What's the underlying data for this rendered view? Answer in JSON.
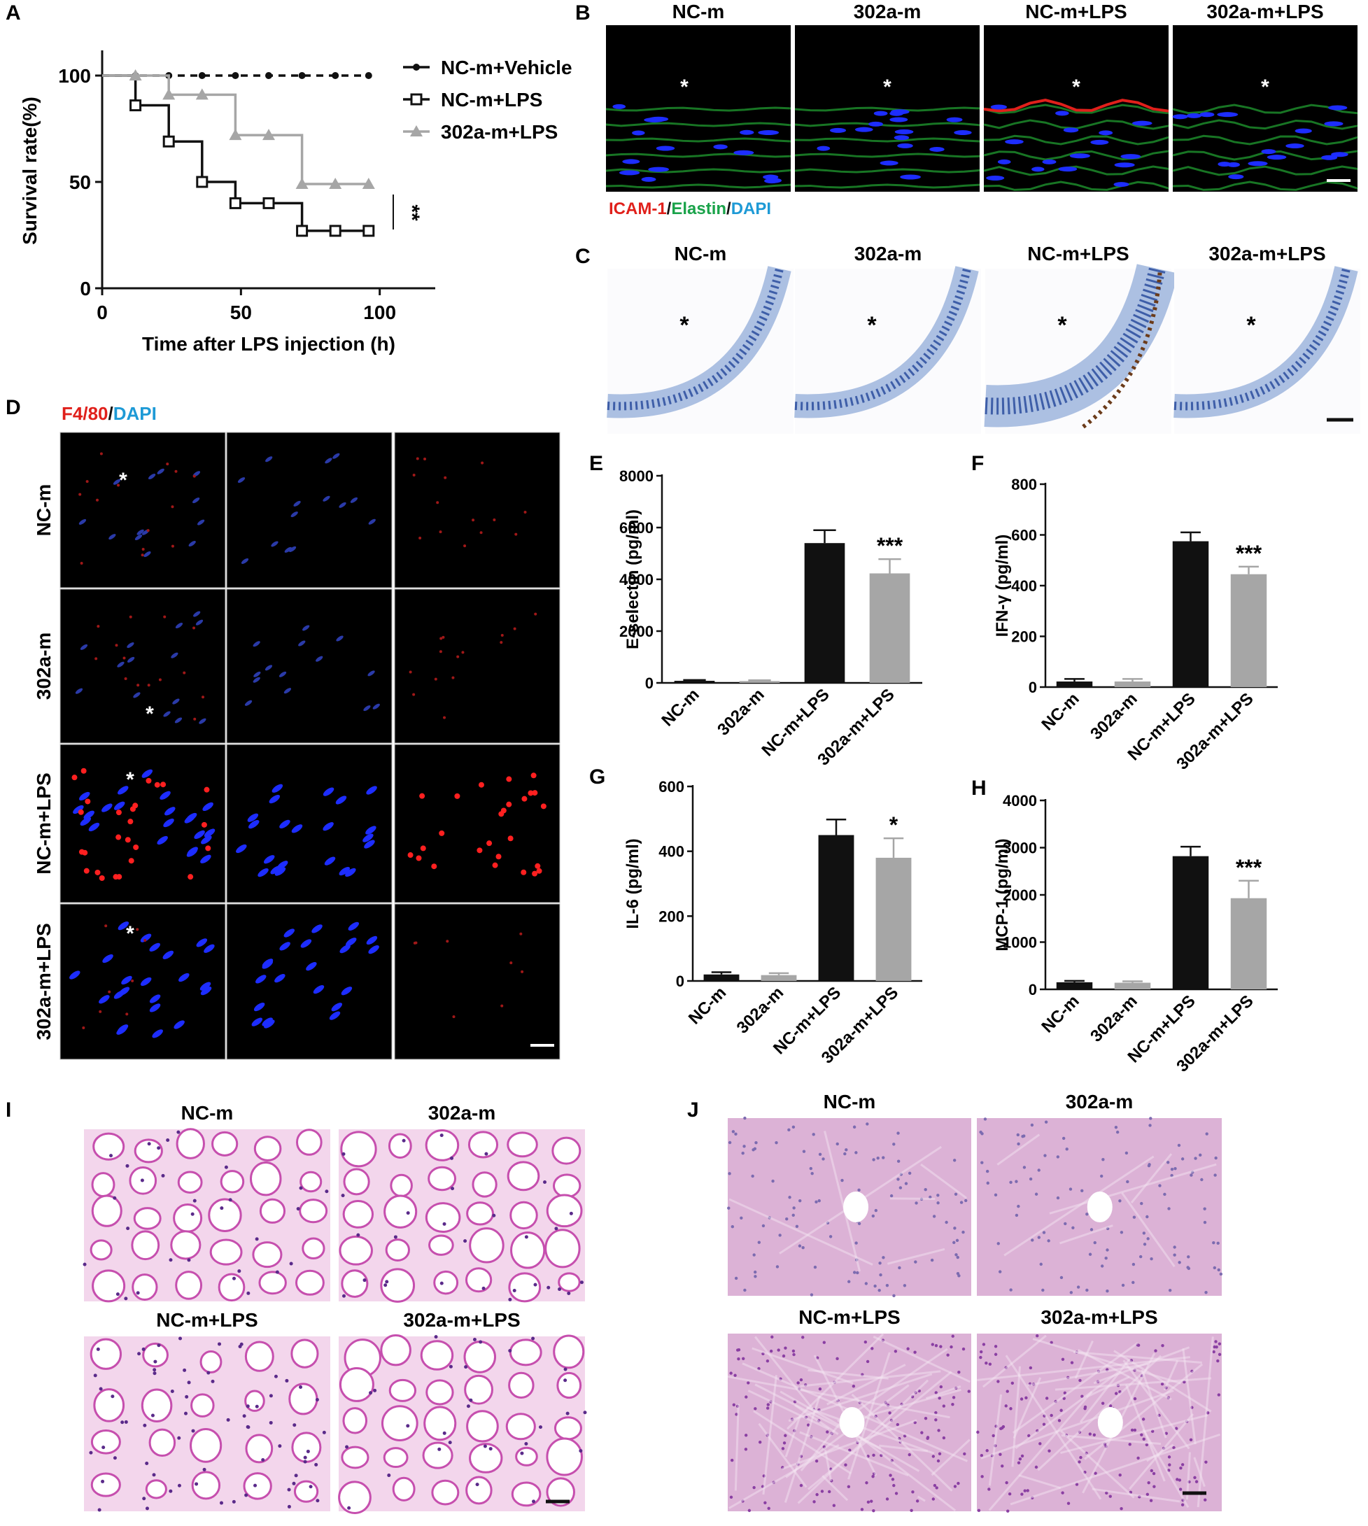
{
  "panels": {
    "A": {
      "letter": "A",
      "chart_data": {
        "type": "line",
        "step": true,
        "ylabel": "Survival rate(%)",
        "xlabel": "Time after LPS injection (h)",
        "xlim": [
          0,
          120
        ],
        "ylim": [
          0,
          100
        ],
        "xticks": [
          "0",
          "50",
          "100"
        ],
        "yticks": [
          "0",
          "50",
          "100"
        ],
        "series": [
          {
            "name": "NC-m+Vehicle",
            "marker": "circle",
            "dashed": true,
            "color": "#111111",
            "x": [
              0,
              12,
              24,
              36,
              48,
              60,
              72,
              84,
              96
            ],
            "y": [
              100,
              100,
              100,
              100,
              100,
              100,
              100,
              100,
              100
            ]
          },
          {
            "name": "NC-m+LPS",
            "marker": "square",
            "dashed": false,
            "color": "#111111",
            "x": [
              0,
              12,
              24,
              36,
              48,
              60,
              72,
              84,
              96
            ],
            "y": [
              100,
              86,
              69,
              50,
              40,
              40,
              27,
              27,
              27
            ]
          },
          {
            "name": "302a-m+LPS",
            "marker": "triangle",
            "dashed": false,
            "color": "#a6a6a6",
            "x": [
              0,
              12,
              24,
              36,
              48,
              60,
              72,
              84,
              96
            ],
            "y": [
              100,
              100,
              91,
              91,
              72,
              72,
              49,
              49,
              49
            ]
          }
        ],
        "annotation": "**"
      }
    },
    "B": {
      "letter": "B",
      "titles": [
        "NC-m",
        "302a-m",
        "NC-m+LPS",
        "302a-m+LPS"
      ],
      "asterisk": "*",
      "legend": [
        {
          "text": "ICAM-1",
          "color": "#e0201b"
        },
        {
          "text": "/",
          "color": "#111111"
        },
        {
          "text": "Elastin",
          "color": "#1aa34a"
        },
        {
          "text": "/",
          "color": "#111111"
        },
        {
          "text": "DAPI",
          "color": "#1e9ad6"
        }
      ]
    },
    "C": {
      "letter": "C",
      "titles": [
        "NC-m",
        "302a-m",
        "NC-m+LPS",
        "302a-m+LPS"
      ],
      "asterisk": "*"
    },
    "D": {
      "letter": "D",
      "legend": [
        {
          "text": "F4/80",
          "color": "#e0201b"
        },
        {
          "text": "/",
          "color": "#111111"
        },
        {
          "text": "DAPI",
          "color": "#1e9ad6"
        }
      ],
      "rows": [
        "NC-m",
        "302a-m",
        "NC-m+LPS",
        "302a-m+LPS"
      ],
      "asterisk": "*"
    },
    "bars": [
      {
        "letter": "E",
        "chart_data": {
          "type": "bar",
          "ylabel": "E-selectin (pg/ml)",
          "ylim": [
            0,
            8000
          ],
          "yticks": [
            "0",
            "2000",
            "4000",
            "6000",
            "8000"
          ],
          "categories": [
            "NC-m",
            "302a-m",
            "NC-m+LPS",
            "302a-m+LPS"
          ],
          "values": [
            80,
            70,
            5400,
            4230
          ],
          "errors": [
            30,
            30,
            500,
            550
          ],
          "colors": [
            "#111111",
            "#a6a6a6",
            "#111111",
            "#a6a6a6"
          ],
          "sig": "***"
        }
      },
      {
        "letter": "F",
        "chart_data": {
          "type": "bar",
          "ylabel": "IFN-γ (pg/ml)",
          "ylim": [
            0,
            800
          ],
          "yticks": [
            "0",
            "200",
            "400",
            "600",
            "800"
          ],
          "categories": [
            "NC-m",
            "302a-m",
            "NC-m+LPS",
            "302a-m+LPS"
          ],
          "values": [
            22,
            22,
            575,
            445
          ],
          "errors": [
            10,
            10,
            35,
            30
          ],
          "colors": [
            "#111111",
            "#a6a6a6",
            "#111111",
            "#a6a6a6"
          ],
          "sig": "***"
        }
      },
      {
        "letter": "G",
        "chart_data": {
          "type": "bar",
          "ylabel": "IL-6 (pg/ml)",
          "ylim": [
            0,
            600
          ],
          "yticks": [
            "0",
            "200",
            "400",
            "600"
          ],
          "categories": [
            "NC-m",
            "302a-m",
            "NC-m+LPS",
            "302a-m+LPS"
          ],
          "values": [
            20,
            18,
            450,
            380
          ],
          "errors": [
            7,
            6,
            48,
            60
          ],
          "colors": [
            "#111111",
            "#a6a6a6",
            "#111111",
            "#a6a6a6"
          ],
          "sig": "*"
        }
      },
      {
        "letter": "H",
        "chart_data": {
          "type": "bar",
          "ylabel": "MCP-1 (pg/ml)",
          "ylim": [
            0,
            4000
          ],
          "yticks": [
            "0",
            "1000",
            "2000",
            "3000",
            "4000"
          ],
          "categories": [
            "NC-m",
            "302a-m",
            "NC-m+LPS",
            "302a-m+LPS"
          ],
          "values": [
            150,
            140,
            2820,
            1930
          ],
          "errors": [
            30,
            30,
            200,
            370
          ],
          "colors": [
            "#111111",
            "#a6a6a6",
            "#111111",
            "#a6a6a6"
          ],
          "sig": "***"
        }
      }
    ],
    "I": {
      "letter": "I",
      "titles": [
        "NC-m",
        "302a-m",
        "NC-m+LPS",
        "302a-m+LPS"
      ]
    },
    "J": {
      "letter": "J",
      "titles": [
        "NC-m",
        "302a-m",
        "NC-m+LPS",
        "302a-m+LPS"
      ]
    }
  },
  "colors": {
    "black": "#111111",
    "gray": "#a6a6a6",
    "he_pink": "#e7b7dc",
    "he_purple": "#7a3d9a"
  }
}
